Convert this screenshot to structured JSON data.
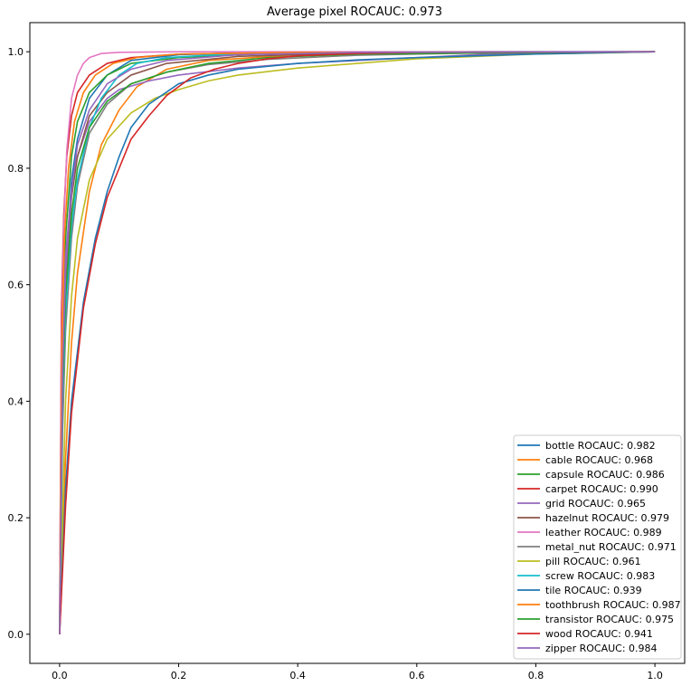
{
  "chart_data": {
    "type": "line",
    "title": "Average pixel ROCAUC: 0.973",
    "xlabel": "",
    "ylabel": "",
    "xlim": [
      -0.05,
      1.05
    ],
    "ylim": [
      -0.05,
      1.05
    ],
    "x_ticks": [
      0.0,
      0.2,
      0.4,
      0.6,
      0.8,
      1.0
    ],
    "x_tick_labels": [
      "0.0",
      "0.2",
      "0.4",
      "0.6",
      "0.8",
      "1.0"
    ],
    "y_ticks": [
      0.0,
      0.2,
      0.4,
      0.6,
      0.8,
      1.0
    ],
    "y_tick_labels": [
      "0.0",
      "0.2",
      "0.4",
      "0.6",
      "0.8",
      "1.0"
    ],
    "grid": false,
    "legend_position": "lower-right",
    "series": [
      {
        "name": "bottle ROCAUC: 0.982",
        "color": "#1f77b4",
        "x": [
          0,
          0.005,
          0.01,
          0.02,
          0.03,
          0.05,
          0.08,
          0.12,
          0.2,
          0.3,
          0.5,
          0.7,
          1.0
        ],
        "y": [
          0,
          0.45,
          0.62,
          0.78,
          0.85,
          0.92,
          0.96,
          0.985,
          0.995,
          0.998,
          0.999,
          1.0,
          1.0
        ]
      },
      {
        "name": "cable ROCAUC: 0.968",
        "color": "#ff7f0e",
        "x": [
          0,
          0.01,
          0.02,
          0.03,
          0.05,
          0.07,
          0.1,
          0.13,
          0.18,
          0.25,
          0.4,
          0.6,
          1.0
        ],
        "y": [
          0,
          0.3,
          0.5,
          0.62,
          0.76,
          0.84,
          0.9,
          0.94,
          0.97,
          0.985,
          0.995,
          0.999,
          1.0
        ]
      },
      {
        "name": "capsule ROCAUC: 0.986",
        "color": "#2ca02c",
        "x": [
          0,
          0.005,
          0.01,
          0.02,
          0.03,
          0.05,
          0.08,
          0.12,
          0.2,
          0.35,
          0.6,
          1.0
        ],
        "y": [
          0,
          0.5,
          0.68,
          0.82,
          0.88,
          0.93,
          0.96,
          0.98,
          0.99,
          0.997,
          0.999,
          1.0
        ]
      },
      {
        "name": "carpet ROCAUC: 0.990",
        "color": "#d62728",
        "x": [
          0,
          0.003,
          0.007,
          0.012,
          0.02,
          0.03,
          0.05,
          0.08,
          0.12,
          0.2,
          0.4,
          1.0
        ],
        "y": [
          0,
          0.55,
          0.72,
          0.82,
          0.89,
          0.93,
          0.96,
          0.98,
          0.99,
          0.996,
          0.999,
          1.0
        ]
      },
      {
        "name": "grid ROCAUC: 0.965",
        "color": "#9467bd",
        "x": [
          0,
          0.005,
          0.01,
          0.02,
          0.03,
          0.05,
          0.08,
          0.1,
          0.15,
          0.2,
          0.3,
          0.4,
          0.5,
          0.6,
          0.7,
          0.8,
          1.0
        ],
        "y": [
          0,
          0.5,
          0.65,
          0.76,
          0.82,
          0.88,
          0.92,
          0.935,
          0.95,
          0.96,
          0.972,
          0.98,
          0.985,
          0.99,
          0.995,
          0.998,
          1.0
        ]
      },
      {
        "name": "hazelnut ROCAUC: 0.979",
        "color": "#8c564b",
        "x": [
          0,
          0.005,
          0.01,
          0.02,
          0.03,
          0.05,
          0.08,
          0.12,
          0.18,
          0.3,
          0.5,
          1.0
        ],
        "y": [
          0,
          0.45,
          0.6,
          0.75,
          0.82,
          0.89,
          0.93,
          0.96,
          0.98,
          0.992,
          0.998,
          1.0
        ]
      },
      {
        "name": "leather ROCAUC: 0.989",
        "color": "#e377c2",
        "x": [
          0,
          0.003,
          0.007,
          0.012,
          0.02,
          0.03,
          0.04,
          0.05,
          0.07,
          0.1,
          0.2,
          1.0
        ],
        "y": [
          0,
          0.5,
          0.7,
          0.83,
          0.92,
          0.96,
          0.98,
          0.99,
          0.997,
          0.999,
          1.0,
          1.0
        ]
      },
      {
        "name": "metal_nut ROCAUC: 0.971",
        "color": "#7f7f7f",
        "x": [
          0,
          0.005,
          0.01,
          0.02,
          0.03,
          0.05,
          0.08,
          0.12,
          0.18,
          0.25,
          0.35,
          0.5,
          0.7,
          1.0
        ],
        "y": [
          0,
          0.35,
          0.52,
          0.68,
          0.77,
          0.86,
          0.91,
          0.945,
          0.965,
          0.978,
          0.987,
          0.994,
          0.998,
          1.0
        ]
      },
      {
        "name": "pill ROCAUC: 0.961",
        "color": "#bcbd22",
        "x": [
          0,
          0.01,
          0.02,
          0.03,
          0.05,
          0.08,
          0.12,
          0.16,
          0.2,
          0.25,
          0.3,
          0.4,
          0.5,
          0.6,
          0.8,
          1.0
        ],
        "y": [
          0,
          0.4,
          0.58,
          0.68,
          0.78,
          0.85,
          0.895,
          0.92,
          0.935,
          0.95,
          0.96,
          0.972,
          0.98,
          0.988,
          0.996,
          1.0
        ]
      },
      {
        "name": "screw ROCAUC: 0.983",
        "color": "#17becf",
        "x": [
          0,
          0.005,
          0.01,
          0.02,
          0.03,
          0.05,
          0.07,
          0.1,
          0.13,
          0.18,
          0.3,
          0.5,
          1.0
        ],
        "y": [
          0,
          0.4,
          0.55,
          0.7,
          0.78,
          0.87,
          0.92,
          0.96,
          0.98,
          0.99,
          0.997,
          0.999,
          1.0
        ]
      },
      {
        "name": "tile ROCAUC: 0.939",
        "color": "#1f77b4",
        "x": [
          0,
          0.01,
          0.02,
          0.04,
          0.06,
          0.08,
          0.1,
          0.12,
          0.15,
          0.2,
          0.25,
          0.3,
          0.4,
          0.5,
          0.6,
          0.8,
          1.0
        ],
        "y": [
          0,
          0.25,
          0.4,
          0.57,
          0.68,
          0.76,
          0.82,
          0.87,
          0.91,
          0.945,
          0.96,
          0.97,
          0.98,
          0.986,
          0.99,
          0.996,
          1.0
        ]
      },
      {
        "name": "toothbrush ROCAUC: 0.987",
        "color": "#ff7f0e",
        "x": [
          0,
          0.004,
          0.008,
          0.015,
          0.025,
          0.04,
          0.06,
          0.09,
          0.13,
          0.2,
          0.4,
          1.0
        ],
        "y": [
          0,
          0.5,
          0.68,
          0.8,
          0.88,
          0.93,
          0.96,
          0.98,
          0.99,
          0.996,
          0.999,
          1.0
        ]
      },
      {
        "name": "transistor ROCAUC: 0.975",
        "color": "#2ca02c",
        "x": [
          0,
          0.005,
          0.01,
          0.02,
          0.03,
          0.05,
          0.08,
          0.12,
          0.18,
          0.25,
          0.35,
          0.5,
          1.0
        ],
        "y": [
          0,
          0.42,
          0.58,
          0.72,
          0.8,
          0.87,
          0.915,
          0.945,
          0.965,
          0.98,
          0.99,
          0.996,
          1.0
        ]
      },
      {
        "name": "wood ROCAUC: 0.941",
        "color": "#d62728",
        "x": [
          0,
          0.01,
          0.02,
          0.04,
          0.06,
          0.08,
          0.1,
          0.12,
          0.15,
          0.18,
          0.22,
          0.26,
          0.3,
          0.35,
          0.4,
          0.5,
          0.6,
          1.0
        ],
        "y": [
          0,
          0.22,
          0.38,
          0.56,
          0.67,
          0.75,
          0.8,
          0.85,
          0.89,
          0.925,
          0.955,
          0.97,
          0.98,
          0.988,
          0.993,
          0.997,
          0.999,
          1.0
        ]
      },
      {
        "name": "zipper ROCAUC: 0.984",
        "color": "#9467bd",
        "x": [
          0,
          0.005,
          0.01,
          0.02,
          0.03,
          0.05,
          0.08,
          0.12,
          0.18,
          0.3,
          0.5,
          1.0
        ],
        "y": [
          0,
          0.45,
          0.62,
          0.76,
          0.84,
          0.9,
          0.945,
          0.97,
          0.985,
          0.995,
          0.999,
          1.0
        ]
      }
    ]
  }
}
